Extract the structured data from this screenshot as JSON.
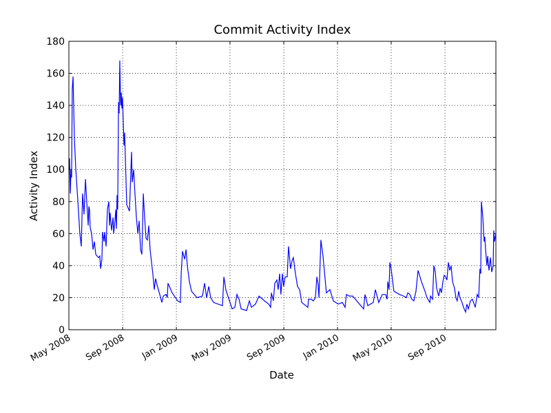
{
  "chart_data": {
    "type": "line",
    "title": "Commit Activity Index",
    "x_label": "Date",
    "y_label": "Activity Index",
    "x": [
      2008.333,
      2008.337,
      2008.342,
      2008.346,
      2008.35,
      2008.354,
      2008.359,
      2008.367,
      2008.376,
      2008.389,
      2008.401,
      2008.41,
      2008.418,
      2008.427,
      2008.436,
      2008.444,
      2008.453,
      2008.457,
      2008.461,
      2008.465,
      2008.474,
      2008.483,
      2008.491,
      2008.5,
      2008.508,
      2008.517,
      2008.525,
      2008.53,
      2008.538,
      2008.542,
      2008.551,
      2008.555,
      2008.564,
      2008.572,
      2008.581,
      2008.585,
      2008.589,
      2008.598,
      2008.607,
      2008.611,
      2008.619,
      2008.624,
      2008.628,
      2008.632,
      2008.636,
      2008.641,
      2008.645,
      2008.649,
      2008.654,
      2008.658,
      2008.662,
      2008.666,
      2008.675,
      2008.679,
      2008.692,
      2008.709,
      2008.718,
      2008.722,
      2008.726,
      2008.735,
      2008.743,
      2008.752,
      2008.761,
      2008.769,
      2008.778,
      2008.786,
      2008.795,
      2008.803,
      2008.812,
      2008.82,
      2008.829,
      2008.837,
      2008.854,
      2008.863,
      2008.871,
      2008.88,
      2008.897,
      2008.91,
      2008.919,
      2008.936,
      2008.944,
      2008.948,
      2008.957,
      2008.974,
      2009.008,
      2009.025,
      2009.03,
      2009.038,
      2009.051,
      2009.06,
      2009.068,
      2009.081,
      2009.094,
      2009.128,
      2009.162,
      2009.175,
      2009.188,
      2009.201,
      2009.213,
      2009.231,
      2009.286,
      2009.295,
      2009.307,
      2009.333,
      2009.346,
      2009.363,
      2009.376,
      2009.389,
      2009.402,
      2009.436,
      2009.453,
      2009.466,
      2009.491,
      2009.513,
      2009.547,
      2009.573,
      2009.585,
      2009.59,
      2009.602,
      2009.611,
      2009.624,
      2009.632,
      2009.641,
      2009.649,
      2009.658,
      2009.666,
      2009.675,
      2009.688,
      2009.696,
      2009.709,
      2009.718,
      2009.726,
      2009.739,
      2009.752,
      2009.765,
      2009.778,
      2009.816,
      2009.82,
      2009.837,
      2009.85,
      2009.863,
      2009.872,
      2009.88,
      2009.885,
      2009.897,
      2009.91,
      2009.931,
      2009.953,
      2009.974,
      2010.004,
      2010.03,
      2010.047,
      2010.055,
      2010.073,
      2010.094,
      2010.162,
      2010.171,
      2010.188,
      2010.222,
      2010.235,
      2010.256,
      2010.278,
      2010.299,
      2010.308,
      2010.312,
      2010.32,
      2010.325,
      2010.333,
      2010.35,
      2010.385,
      2010.41,
      2010.427,
      2010.436,
      2010.449,
      2010.461,
      2010.474,
      2010.487,
      2010.5,
      2010.521,
      2010.543,
      2010.555,
      2010.573,
      2010.577,
      2010.59,
      2010.598,
      2010.607,
      2010.615,
      2010.628,
      2010.637,
      2010.645,
      2010.654,
      2010.662,
      2010.671,
      2010.679,
      2010.688,
      2010.697,
      2010.705,
      2010.714,
      2010.726,
      2010.735,
      2010.743,
      2010.752,
      2010.76,
      2010.773,
      2010.782,
      2010.795,
      2010.803,
      2010.812,
      2010.825,
      2010.837,
      2010.855,
      2010.867,
      2010.876,
      2010.884,
      2010.889,
      2010.893,
      2010.902,
      2010.91,
      2010.914,
      2010.919,
      2010.927,
      2010.932,
      2010.94,
      2010.949,
      2010.957,
      2010.966,
      2010.97,
      2010.974,
      2010.983
    ],
    "series": [
      {
        "name": "Activity Index",
        "color": "#0000ff",
        "values": [
          100,
          107,
          85,
          100,
          95,
          150,
          158,
          120,
          100,
          80,
          60,
          52,
          85,
          72,
          94,
          80,
          65,
          77,
          75,
          64,
          60,
          50,
          55,
          47,
          46,
          45,
          46,
          38,
          44,
          61,
          55,
          61,
          52,
          75,
          80,
          65,
          73,
          62,
          70,
          60,
          68,
          75,
          63,
          84,
          75,
          142,
          135,
          168,
          140,
          148,
          138,
          145,
          115,
          123,
          78,
          74,
          100,
          111,
          92,
          100,
          85,
          70,
          60,
          68,
          50,
          47,
          85,
          70,
          57,
          56,
          65,
          50,
          35,
          25,
          32,
          28,
          22,
          17,
          21,
          22,
          20,
          29,
          27,
          23,
          18,
          17,
          35,
          49,
          44,
          50,
          40,
          30,
          24,
          20,
          21,
          29,
          20,
          27,
          20,
          17,
          15,
          33,
          25,
          17,
          13,
          14,
          22,
          19,
          13,
          12,
          18,
          14,
          16,
          21,
          18,
          16,
          14,
          23,
          18,
          29,
          31,
          25,
          35,
          22,
          35,
          27,
          33,
          33,
          52,
          38,
          43,
          45,
          35,
          27,
          25,
          17,
          14,
          19,
          19,
          18,
          20,
          33,
          28,
          20,
          56,
          46,
          23,
          25,
          18,
          16,
          17,
          14,
          22,
          21,
          21,
          13,
          22,
          15,
          17,
          25,
          17,
          22,
          22,
          19,
          30,
          25,
          42,
          38,
          24,
          22,
          21,
          20,
          23,
          22,
          19,
          18,
          24,
          37,
          30,
          24,
          20,
          17,
          21,
          19,
          40,
          36,
          26,
          21,
          26,
          23,
          30,
          34,
          33,
          31,
          42,
          37,
          40,
          30,
          26,
          20,
          18,
          24,
          20,
          17,
          14,
          11,
          16,
          13,
          18,
          19,
          14,
          22,
          20,
          38,
          35,
          80,
          70,
          55,
          58,
          50,
          40,
          46,
          37,
          45,
          36,
          40,
          62,
          55,
          60
        ]
      }
    ],
    "xlim": [
      2008.333,
      2010.983
    ],
    "xticks": [
      {
        "value": 2008.333,
        "label": "May 2008"
      },
      {
        "value": 2008.667,
        "label": "Sep 2008"
      },
      {
        "value": 2009.0,
        "label": "Jan 2009"
      },
      {
        "value": 2009.333,
        "label": "May 2009"
      },
      {
        "value": 2009.667,
        "label": "Sep 2009"
      },
      {
        "value": 2010.0,
        "label": "Jan 2010"
      },
      {
        "value": 2010.333,
        "label": "May 2010"
      },
      {
        "value": 2010.667,
        "label": "Sep 2010"
      }
    ],
    "ylim": [
      0,
      180
    ],
    "yticks": [
      0,
      20,
      40,
      60,
      80,
      100,
      120,
      140,
      160,
      180
    ],
    "grid": true
  }
}
